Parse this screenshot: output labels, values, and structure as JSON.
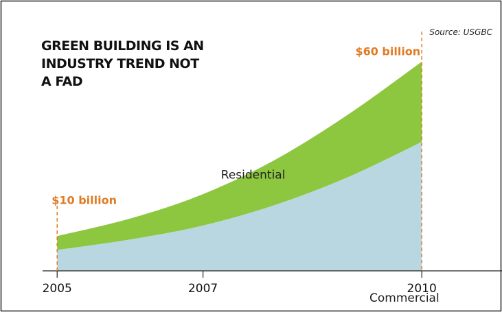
{
  "chart_data": {
    "type": "stacked_area",
    "title": "GREEN BUILDING IS AN INDUSTRY TREND NOT A FAD",
    "source": "Source: USGBC",
    "x": [
      2005,
      2006,
      2007,
      2008,
      2009,
      2010
    ],
    "series": [
      {
        "name": "Commercial",
        "color": "#b9d7e1",
        "values": [
          6,
          9,
          13,
          19,
          27,
          37
        ]
      },
      {
        "name": "Residential",
        "color": "#8dc63f",
        "values": [
          4,
          6,
          9,
          13,
          18,
          23
        ]
      }
    ],
    "xlim": [
      2004.8,
      2011.1
    ],
    "xticks": [
      2005,
      2007,
      2010
    ],
    "ylim": [
      0,
      60
    ],
    "annotations": [
      {
        "text": "$10 billion",
        "x": 2005,
        "value": 10,
        "color": "#e07b24"
      },
      {
        "text": "$60 billion",
        "x": 2010,
        "value": 60,
        "color": "#e07b24"
      }
    ]
  }
}
